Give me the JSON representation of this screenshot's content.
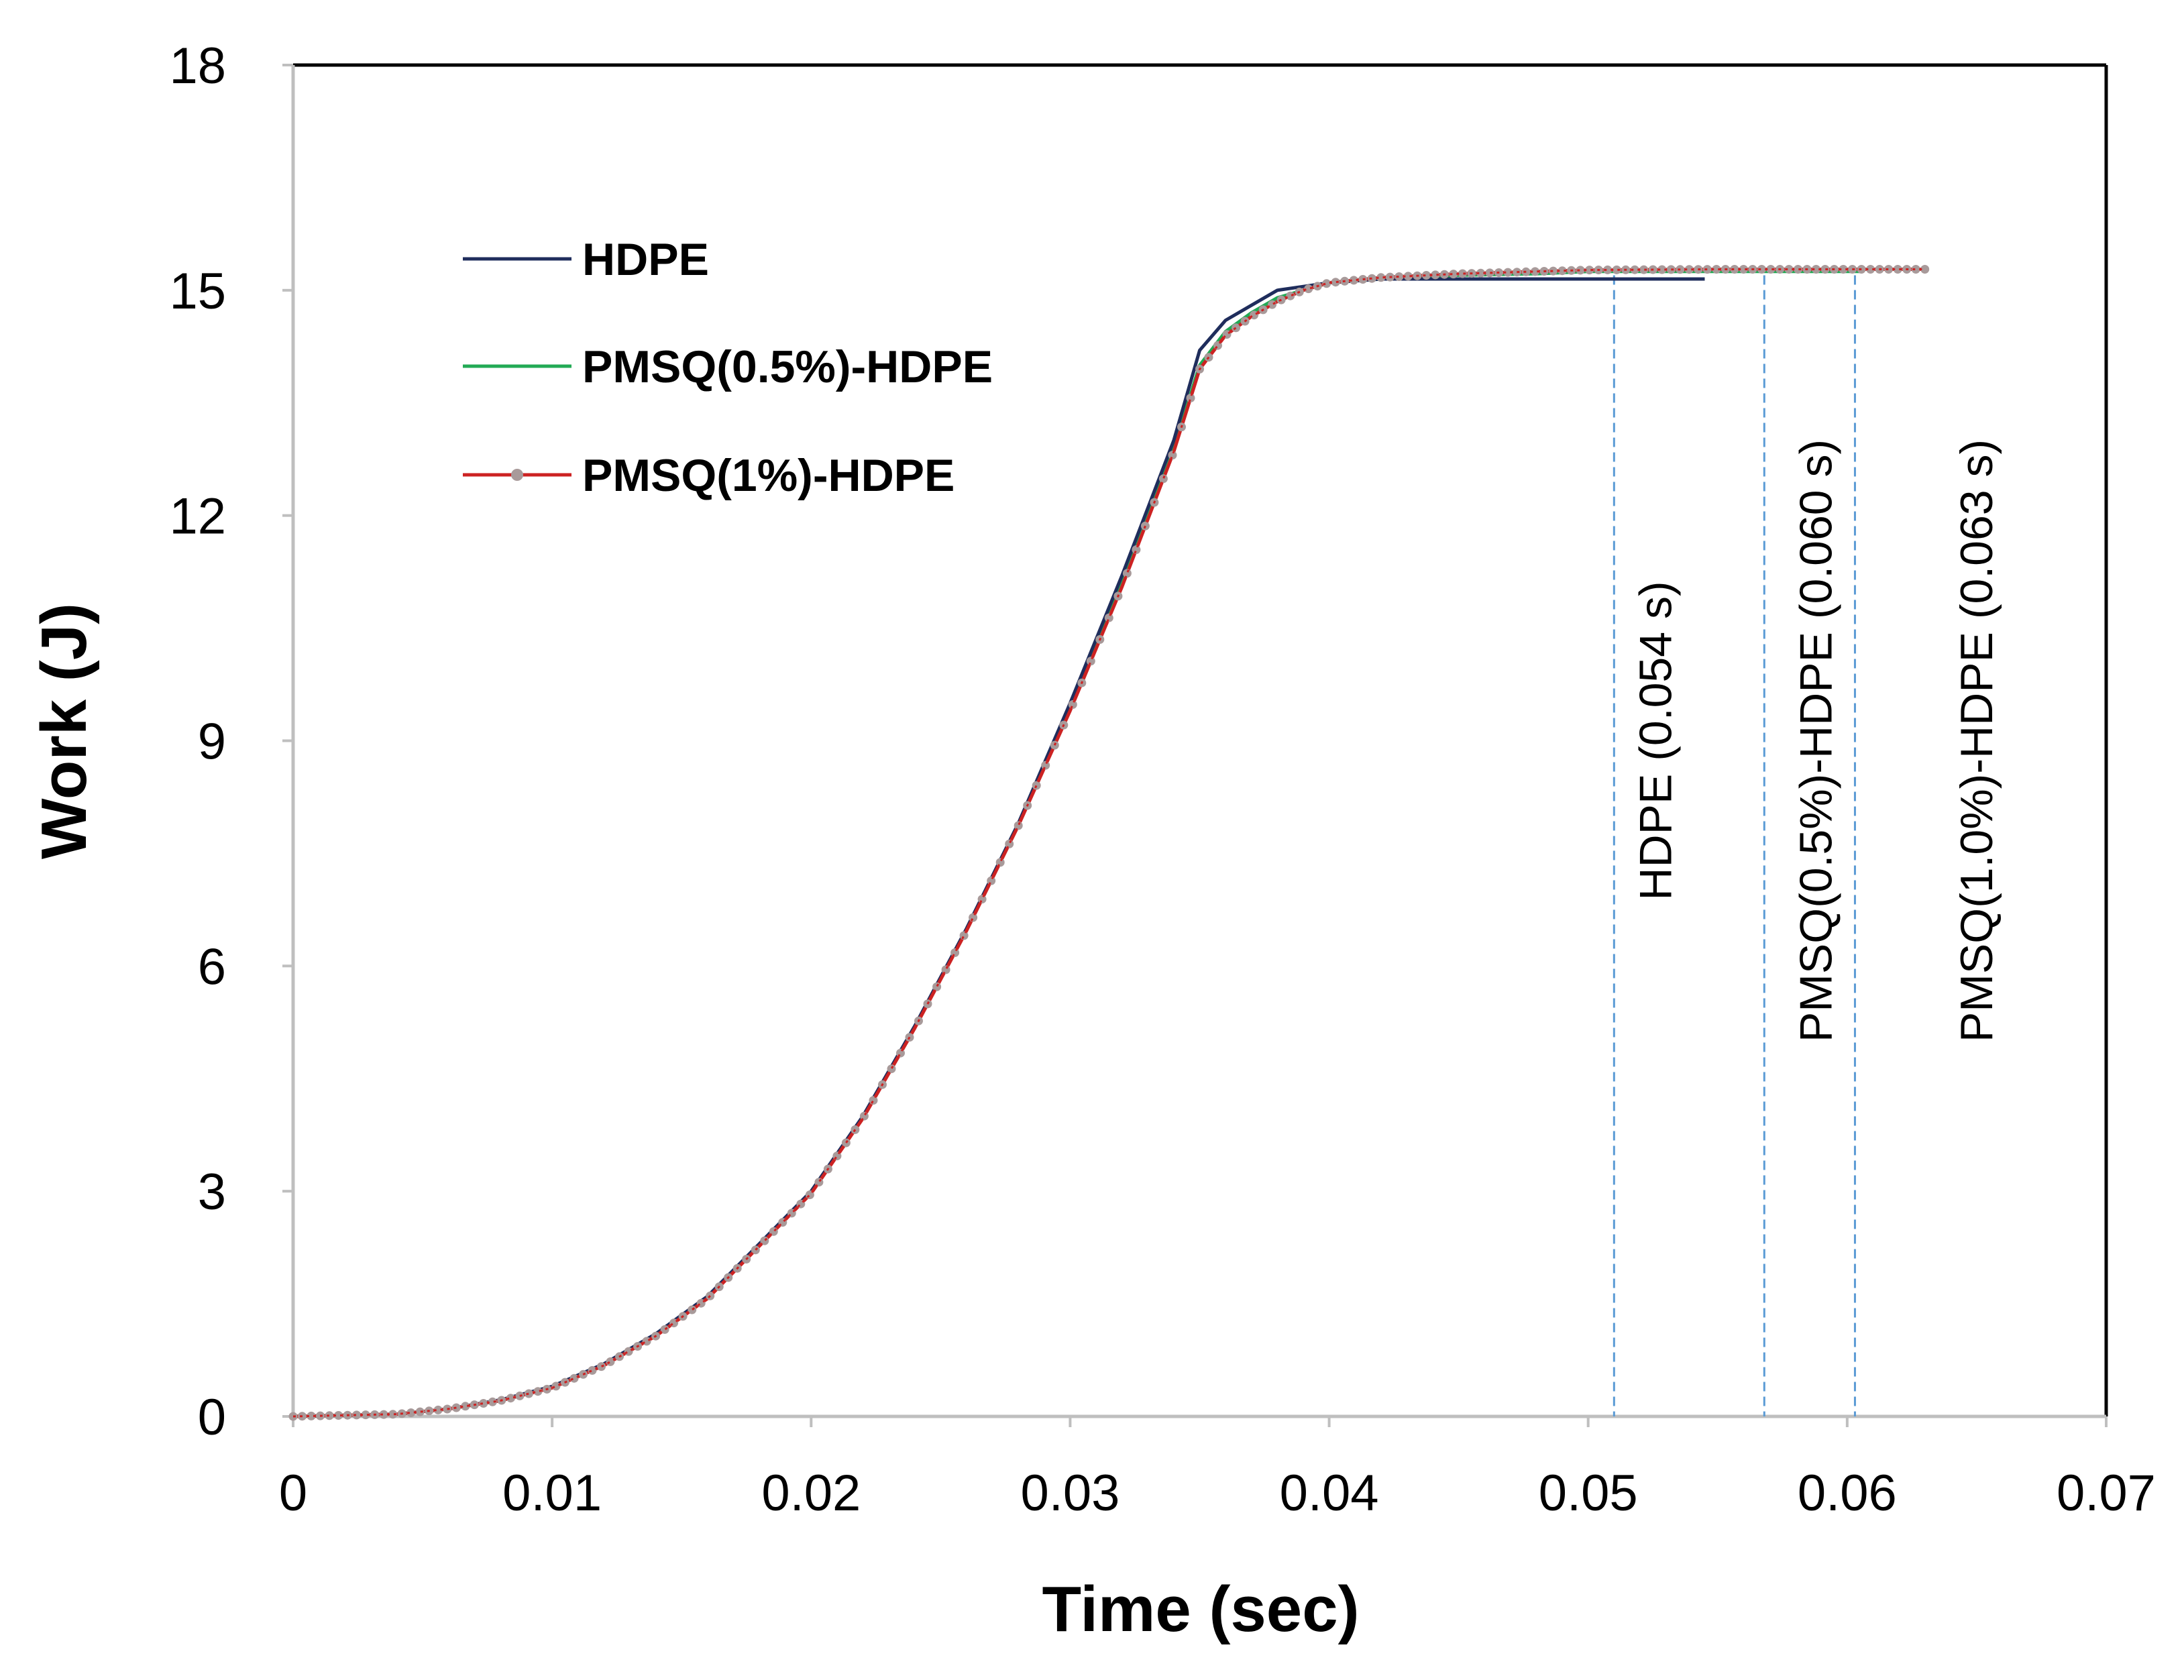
{
  "chart_data": {
    "type": "line",
    "title": "",
    "xlabel": "Time (sec)",
    "ylabel": "Work (J)",
    "xlim": [
      0,
      0.07
    ],
    "ylim": [
      0,
      18
    ],
    "xticks": [
      0,
      0.01,
      0.02,
      0.03,
      0.04,
      0.05,
      0.06,
      0.07
    ],
    "xtick_labels": [
      "0",
      "0.01",
      "0.02",
      "0.03",
      "0.04",
      "0.05",
      "0.06",
      "0.07"
    ],
    "yticks": [
      0,
      3,
      6,
      9,
      12,
      15,
      18
    ],
    "ytick_labels": [
      "0",
      "3",
      "6",
      "9",
      "12",
      "15",
      "18"
    ],
    "grid": false,
    "legend_position": "top-left",
    "colors": {
      "hdpe": "#1f2d5c",
      "pmsq05": "#22aa55",
      "pmsq1_line": "#cc2222",
      "pmsq1_marker": "#a89a9a",
      "annotation_line": "#5b9bd5",
      "axis": "#bfbfbf",
      "frame": "#000000"
    },
    "series": [
      {
        "name": "HDPE",
        "style": "line",
        "x": [
          0,
          0.004,
          0.006,
          0.008,
          0.01,
          0.012,
          0.014,
          0.016,
          0.018,
          0.02,
          0.022,
          0.024,
          0.026,
          0.028,
          0.03,
          0.032,
          0.034,
          0.035,
          0.036,
          0.037,
          0.038,
          0.039,
          0.04,
          0.042,
          0.045,
          0.048,
          0.05,
          0.052,
          0.0545
        ],
        "y": [
          0,
          0.03,
          0.1,
          0.22,
          0.4,
          0.7,
          1.1,
          1.6,
          2.3,
          3.0,
          4.0,
          5.2,
          6.5,
          7.9,
          9.5,
          11.2,
          13.0,
          14.2,
          14.6,
          14.8,
          15.0,
          15.05,
          15.1,
          15.15,
          15.15,
          15.15,
          15.15,
          15.15,
          15.15
        ]
      },
      {
        "name": "PMSQ(0.5%)-HDPE",
        "style": "line",
        "x": [
          0,
          0.004,
          0.006,
          0.008,
          0.01,
          0.012,
          0.014,
          0.016,
          0.018,
          0.02,
          0.022,
          0.024,
          0.026,
          0.028,
          0.03,
          0.032,
          0.034,
          0.035,
          0.036,
          0.037,
          0.038,
          0.039,
          0.04,
          0.042,
          0.045,
          0.048,
          0.05,
          0.055,
          0.0605
        ],
        "y": [
          0,
          0.03,
          0.1,
          0.21,
          0.39,
          0.69,
          1.08,
          1.58,
          2.28,
          2.98,
          3.98,
          5.18,
          6.48,
          7.88,
          9.45,
          11.1,
          12.9,
          14.0,
          14.45,
          14.7,
          14.9,
          15.0,
          15.1,
          15.15,
          15.2,
          15.22,
          15.25,
          15.25,
          15.25
        ]
      },
      {
        "name": "PMSQ(1%)-HDPE",
        "style": "line+markers",
        "x": [
          0,
          0.004,
          0.006,
          0.008,
          0.01,
          0.012,
          0.014,
          0.016,
          0.018,
          0.02,
          0.022,
          0.024,
          0.026,
          0.028,
          0.03,
          0.032,
          0.034,
          0.035,
          0.036,
          0.037,
          0.038,
          0.039,
          0.04,
          0.042,
          0.045,
          0.048,
          0.05,
          0.055,
          0.06,
          0.063
        ],
        "y": [
          0,
          0.03,
          0.1,
          0.21,
          0.38,
          0.68,
          1.07,
          1.57,
          2.27,
          2.97,
          3.97,
          5.17,
          6.47,
          7.87,
          9.4,
          11.05,
          12.85,
          13.95,
          14.4,
          14.65,
          14.85,
          15.0,
          15.1,
          15.17,
          15.22,
          15.25,
          15.27,
          15.28,
          15.28,
          15.28
        ]
      }
    ],
    "annotations": [
      {
        "text": "HDPE (0.054 s)",
        "x": 0.051,
        "label_x": 0.0532,
        "label_y": 9
      },
      {
        "text": "PMSQ(0.5%)-HDPE (0.060 s)",
        "x": 0.0568,
        "label_x": 0.0594,
        "label_y": 9
      },
      {
        "text": "PMSQ(1.0%)-HDPE (0.063 s)",
        "x": 0.0603,
        "label_x": 0.0656,
        "label_y": 9
      }
    ]
  }
}
